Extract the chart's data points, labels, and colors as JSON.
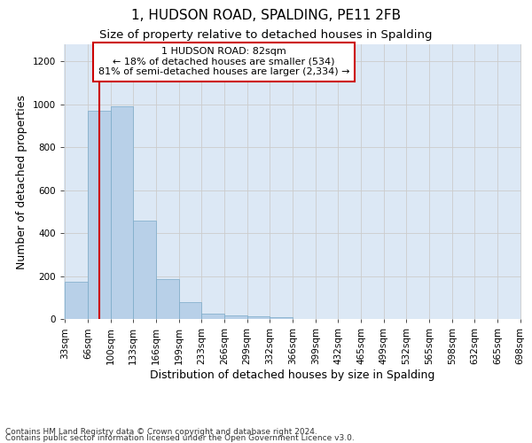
{
  "title": "1, HUDSON ROAD, SPALDING, PE11 2FB",
  "subtitle": "Size of property relative to detached houses in Spalding",
  "xlabel": "Distribution of detached houses by size in Spalding",
  "ylabel": "Number of detached properties",
  "footnote1": "Contains HM Land Registry data © Crown copyright and database right 2024.",
  "footnote2": "Contains public sector information licensed under the Open Government Licence v3.0.",
  "annotation_title": "1 HUDSON ROAD: 82sqm",
  "annotation_line1": "← 18% of detached houses are smaller (534)",
  "annotation_line2": "81% of semi-detached houses are larger (2,334) →",
  "bin_labels": [
    "33sqm",
    "66sqm",
    "100sqm",
    "133sqm",
    "166sqm",
    "199sqm",
    "233sqm",
    "266sqm",
    "299sqm",
    "332sqm",
    "366sqm",
    "399sqm",
    "432sqm",
    "465sqm",
    "499sqm",
    "532sqm",
    "565sqm",
    "598sqm",
    "632sqm",
    "665sqm",
    "698sqm"
  ],
  "bar_heights": [
    175,
    970,
    990,
    460,
    185,
    80,
    25,
    18,
    12,
    8,
    0,
    0,
    0,
    0,
    0,
    0,
    0,
    0,
    0,
    0
  ],
  "bar_color": "#b8d0e8",
  "bar_edgecolor": "#7aaac8",
  "vline_color": "#cc0000",
  "vline_x": 1.5,
  "annotation_box_color": "#cc0000",
  "ylim": [
    0,
    1280
  ],
  "yticks": [
    0,
    200,
    400,
    600,
    800,
    1000,
    1200
  ],
  "grid_color": "#cccccc",
  "bg_color": "#dce8f5",
  "title_fontsize": 11,
  "subtitle_fontsize": 9.5,
  "axis_label_fontsize": 9,
  "tick_fontsize": 7.5,
  "annotation_fontsize": 8,
  "footnote_fontsize": 6.5
}
